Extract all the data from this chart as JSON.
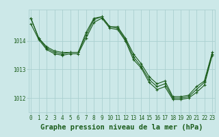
{
  "title": "Graphe pression niveau de la mer (hPa)",
  "bg_color": "#cce8e8",
  "grid_color": "#aad0d0",
  "line_color": "#1a5c1a",
  "x_ticks": [
    0,
    1,
    2,
    3,
    4,
    5,
    6,
    7,
    8,
    9,
    10,
    11,
    12,
    13,
    14,
    15,
    16,
    17,
    18,
    19,
    20,
    21,
    22,
    23
  ],
  "y_ticks": [
    1012,
    1013,
    1014
  ],
  "ylim": [
    1011.5,
    1015.1
  ],
  "xlim": [
    -0.3,
    23.3
  ],
  "series": [
    {
      "x": [
        0,
        1,
        2,
        3,
        4,
        5,
        6,
        7,
        8,
        9,
        10,
        11,
        12,
        13,
        14,
        15,
        16,
        17,
        18,
        19,
        20,
        21,
        22,
        23
      ],
      "y": [
        1014.8,
        1014.1,
        1013.8,
        1013.65,
        1013.6,
        1013.6,
        1013.6,
        1014.3,
        1014.8,
        1014.85,
        1014.5,
        1014.5,
        1014.1,
        1013.55,
        1013.2,
        1012.75,
        1012.5,
        1012.6,
        1012.05,
        1012.05,
        1012.1,
        1012.4,
        1012.6,
        1013.6
      ]
    },
    {
      "x": [
        0,
        1,
        2,
        3,
        4,
        5,
        6,
        7,
        8,
        9,
        10,
        11,
        12,
        13,
        14,
        15,
        16,
        17,
        18,
        19,
        20,
        21,
        22,
        23
      ],
      "y": [
        1014.8,
        1014.1,
        1013.75,
        1013.6,
        1013.55,
        1013.6,
        1013.6,
        1014.2,
        1014.75,
        1014.85,
        1014.5,
        1014.45,
        1014.05,
        1013.45,
        1013.1,
        1012.65,
        1012.4,
        1012.5,
        1012.0,
        1012.0,
        1012.05,
        1012.3,
        1012.55,
        1013.55
      ]
    },
    {
      "x": [
        0,
        1,
        2,
        3,
        4,
        5,
        6,
        7,
        8,
        9,
        10,
        11,
        12,
        13,
        14,
        15,
        16,
        17,
        18,
        19,
        20,
        21,
        22,
        23
      ],
      "y": [
        1014.6,
        1014.05,
        1013.7,
        1013.55,
        1013.5,
        1013.55,
        1013.55,
        1014.1,
        1014.65,
        1014.8,
        1014.45,
        1014.4,
        1014.0,
        1013.35,
        1013.05,
        1012.55,
        1012.3,
        1012.4,
        1011.95,
        1011.95,
        1012.0,
        1012.2,
        1012.45,
        1013.5
      ]
    }
  ],
  "tick_fontsize": 5.5,
  "label_fontsize": 7.5,
  "tick_color": "#1a5c1a",
  "label_color": "#1a5c1a"
}
